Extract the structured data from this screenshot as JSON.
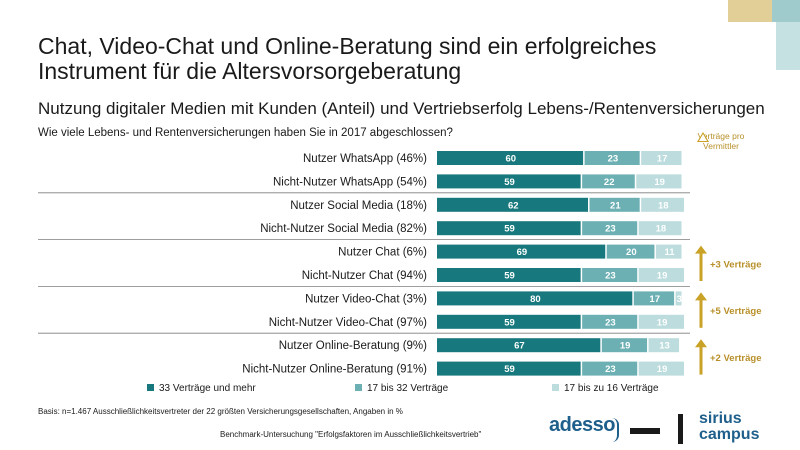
{
  "title": "Chat, Video-Chat und Online-Beratung sind ein erfolgreiches Instrument für die Altersvorsorgeberatung",
  "subtitle": "Nutzung digitaler Medien mit Kunden (Anteil) und Vertriebserfolg Lebens-/Rentenversicherungen",
  "question": "Wie viele Lebens- und Rentenversicherungen haben Sie in 2017 abgeschlossen?",
  "annotation_header": "Verträge pro Vermittler",
  "basis_note": "Basis: n=1.467 Ausschließlichkeitsvertreter der 22 größten Versicherungsgesellschaften, Angaben in %",
  "benchmark_note": "Benchmark-Untersuchung \"Erfolgsfaktoren im Ausschließlichkeitsvertrieb\"",
  "logos": {
    "adesso": "adesso",
    "sirius_line1": "sirius",
    "sirius_line2": "campus"
  },
  "colors": {
    "dark_teal": "#17787d",
    "mid_teal": "#6cb0b4",
    "light_teal": "#bcdcdd",
    "gold": "#c9a227",
    "gold_text": "#b8902a"
  },
  "legend": [
    {
      "label": "33 Verträge und mehr",
      "color": "#17787d"
    },
    {
      "label": "17 bis 32 Verträge",
      "color": "#6cb0b4"
    },
    {
      "label": "17 bis zu 16 Verträge",
      "color": "#bcdcdd"
    }
  ],
  "chart_data": {
    "type": "bar",
    "orientation": "horizontal",
    "stacked": true,
    "categories": [
      "Nutzer WhatsApp (46%)",
      "Nicht-Nutzer WhatsApp (54%)",
      "Nutzer Social Media (18%)",
      "Nicht-Nutzer Social Media (82%)",
      "Nutzer Chat (6%)",
      "Nicht-Nutzer Chat (94%)",
      "Nutzer Video-Chat (3%)",
      "Nicht-Nutzer Video-Chat (97%)",
      "Nutzer Online-Beratung (9%)",
      "Nicht-Nutzer Online-Beratung (91%)"
    ],
    "series": [
      {
        "name": "33 Verträge und mehr",
        "values": [
          60,
          59,
          62,
          59,
          69,
          59,
          80,
          59,
          67,
          59
        ]
      },
      {
        "name": "17 bis 32 Verträge",
        "values": [
          23,
          22,
          21,
          23,
          20,
          23,
          17,
          23,
          19,
          23
        ]
      },
      {
        "name": "17 bis zu 16 Verträge",
        "values": [
          17,
          19,
          18,
          18,
          11,
          19,
          3,
          19,
          13,
          19
        ]
      }
    ],
    "xlim": [
      0,
      100
    ],
    "groups": [
      {
        "rows": [
          0,
          1
        ],
        "annotation": ""
      },
      {
        "rows": [
          2,
          3
        ],
        "annotation": ""
      },
      {
        "rows": [
          4,
          5
        ],
        "annotation": "+3 Verträge"
      },
      {
        "rows": [
          6,
          7
        ],
        "annotation": "+5 Verträge"
      },
      {
        "rows": [
          8,
          9
        ],
        "annotation": "+2 Verträge"
      }
    ],
    "legend_position": "bottom"
  }
}
